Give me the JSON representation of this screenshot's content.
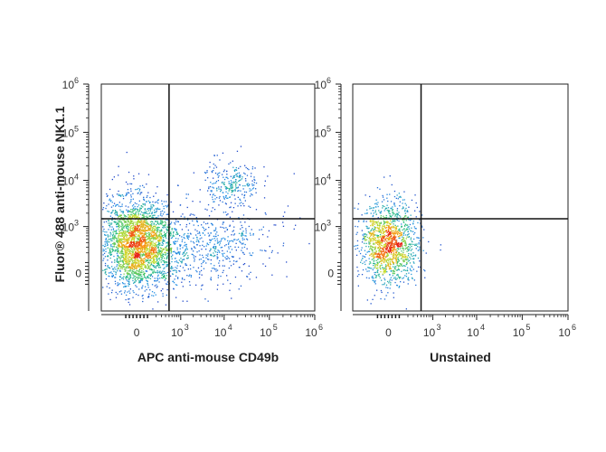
{
  "figure": {
    "y_axis_title": "Fluor® 488 anti-mouse NK1.1",
    "zero_label": "0",
    "base_label": "10",
    "y_ticks": [
      {
        "exp": "3",
        "value": 1000
      },
      {
        "exp": "4",
        "value": 10000
      },
      {
        "exp": "5",
        "value": 100000
      },
      {
        "exp": "6",
        "value": 1000000
      }
    ],
    "x_ticks": [
      {
        "exp": "3",
        "value": 1000
      },
      {
        "exp": "4",
        "value": 10000
      },
      {
        "exp": "5",
        "value": 100000
      },
      {
        "exp": "6",
        "value": 1000000
      }
    ]
  },
  "chart_data": [
    {
      "type": "scatter",
      "title": "",
      "xlabel": "APC anti-mouse CD49b",
      "ylabel": "Fluor® 488 anti-mouse NK1.1",
      "x_scale": "biexponential",
      "y_scale": "biexponential",
      "xlim": [
        -600,
        1000000
      ],
      "ylim": [
        -600,
        1000000
      ],
      "gate": {
        "x": 500,
        "y": 1500
      },
      "color_by": "density",
      "populations": [
        {
          "center_x": 0,
          "center_y": 400,
          "events": 2600
        },
        {
          "center_x": 15000,
          "center_y": 9000,
          "events": 260
        },
        {
          "center_x": 3000,
          "center_y": 300,
          "events": 650
        }
      ]
    },
    {
      "type": "scatter",
      "title": "",
      "xlabel": "Unstained",
      "ylabel": "",
      "x_scale": "biexponential",
      "y_scale": "biexponential",
      "xlim": [
        -600,
        1000000
      ],
      "ylim": [
        -600,
        1000000
      ],
      "gate": {
        "x": 500,
        "y": 1500
      },
      "color_by": "density",
      "populations": [
        {
          "center_x": 0,
          "center_y": 400,
          "events": 1400
        }
      ]
    }
  ]
}
